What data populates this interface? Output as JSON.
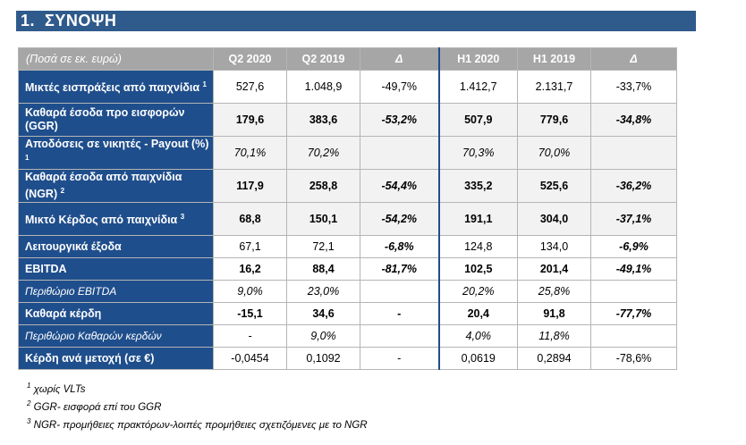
{
  "section": {
    "number": "1.",
    "title": "ΣΥΝΟΨΗ"
  },
  "table": {
    "headers": [
      "(Ποσά σε εκ. ευρώ)",
      "Q2 2020",
      "Q2 2019",
      "Δ",
      "H1 2020",
      "H1 2019",
      "Δ"
    ],
    "rows": [
      {
        "label": "Μικτές εισπράξεις από παιχνίδια",
        "sup": "1",
        "values": [
          "527,6",
          "1.048,9",
          "-49,7%",
          "1.412,7",
          "2.131,7",
          "-33,7%"
        ]
      },
      {
        "label": "Καθαρά έσοδα προ εισφορών (GGR)",
        "sup": "",
        "values": [
          "179,6",
          "383,6",
          "-53,2%",
          "507,9",
          "779,6",
          "-34,8%"
        ]
      },
      {
        "label": "Αποδόσεις σε νικητές - Payout (%)",
        "sup": "1",
        "values": [
          "70,1%",
          "70,2%",
          "",
          "70,3%",
          "70,0%",
          ""
        ]
      },
      {
        "label": "Καθαρά έσοδα από παιχνίδια (NGR)",
        "sup": "2",
        "values": [
          "117,9",
          "258,8",
          "-54,4%",
          "335,2",
          "525,6",
          "-36,2%"
        ]
      },
      {
        "label": "Μικτό Κέρδος από παιχνίδια",
        "sup": "3",
        "values": [
          "68,8",
          "150,1",
          "-54,2%",
          "191,1",
          "304,0",
          "-37,1%"
        ]
      },
      {
        "label": "Λειτουργικά έξοδα",
        "sup": "",
        "values": [
          "67,1",
          "72,1",
          "-6,8%",
          "124,8",
          "134,0",
          "-6,9%"
        ]
      },
      {
        "label": "EBITDA",
        "sup": "",
        "values": [
          "16,2",
          "88,4",
          "-81,7%",
          "102,5",
          "201,4",
          "-49,1%"
        ]
      },
      {
        "label": "Περιθώριο EBITDA",
        "sup": "",
        "values": [
          "9,0%",
          "23,0%",
          "",
          "20,2%",
          "25,8%",
          ""
        ]
      },
      {
        "label": "Καθαρά κέρδη",
        "sup": "",
        "values": [
          "-15,1",
          "34,6",
          "-",
          "20,4",
          "91,8",
          "-77,7%"
        ]
      },
      {
        "label": "Περιθώριο Καθαρών κερδών",
        "sup": "",
        "values": [
          "-",
          "9,0%",
          "",
          "4,0%",
          "11,8%",
          ""
        ]
      },
      {
        "label": "Κέρδη ανά μετοχή (σε €)",
        "sup": "",
        "values": [
          "-0,0454",
          "0,1092",
          "-",
          "0,0619",
          "0,2894",
          "-78,6%"
        ]
      }
    ]
  },
  "footnotes": [
    {
      "sup": "1",
      "text": "χωρίς VLTs"
    },
    {
      "sup": "2",
      "text": "GGR- εισφορά επί του GGR"
    },
    {
      "sup": "3",
      "text": "NGR- προμήθειες πρακτόρων-λοιπές προμήθειες σχετιζόμενες με το NGR"
    }
  ]
}
